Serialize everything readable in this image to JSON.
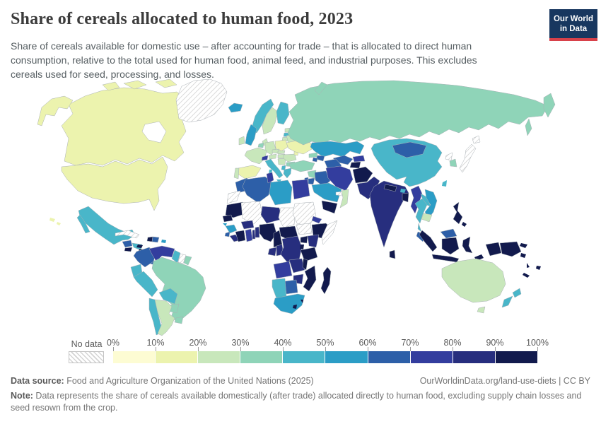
{
  "header": {
    "title": "Share of cereals allocated to human food, 2023",
    "subtitle": "Share of cereals available for domestic use – after accounting for trade – that is allocated to direct human consumption, relative to the total used for human food, animal feed, and industrial purposes. This excludes cereals used for seed, processing, and losses.",
    "logo_line1": "Our World",
    "logo_line2": "in Data",
    "logo_bg": "#18375f",
    "logo_accent": "#d8414a"
  },
  "legend": {
    "no_data_label": "No data",
    "tick_labels": [
      "0%",
      "10%",
      "20%",
      "30%",
      "40%",
      "50%",
      "60%",
      "70%",
      "80%",
      "90%",
      "100%"
    ]
  },
  "footer": {
    "data_source_label": "Data source:",
    "data_source_text": " Food and Agriculture Organization of the United Nations (2025)",
    "link_text": "OurWorldinData.org/land-use-diets | CC BY",
    "note_label": "Note:",
    "note_text": " Data represents the share of cereals available domestically (after trade) allocated directly to human food, excluding supply chain losses and seed resown from the crop."
  },
  "chart_data": {
    "type": "choropleth",
    "title": "Share of cereals allocated to human food, 2023",
    "unit": "%",
    "bins": [
      "0-10%",
      "10-20%",
      "20-30%",
      "30-40%",
      "40-50%",
      "50-60%",
      "60-70%",
      "70-80%",
      "80-90%",
      "90-100%"
    ],
    "bin_colors": [
      "#fdfcd3",
      "#ecf3ae",
      "#c8e7bb",
      "#8fd4b8",
      "#49b6c9",
      "#2b9dc6",
      "#2d5fa8",
      "#333d9e",
      "#272e7e",
      "#121a4d"
    ],
    "no_data_label": "No data",
    "countries": {
      "Canada": 1,
      "United States": 1,
      "Greenland": "no-data",
      "Iceland": 5,
      "Mexico": 4,
      "Guatemala": 6,
      "El Salvador": 9,
      "Honduras": 4,
      "Nicaragua": 9,
      "Costa Rica": 5,
      "Panama": 6,
      "Cuba": "no-data",
      "Jamaica": 9,
      "Haiti": 9,
      "Dominican Republic": 6,
      "Puerto Rico": 5,
      "Colombia": 6,
      "Venezuela": 7,
      "Guyana": 4,
      "Suriname": "no-data",
      "French Guiana": 3,
      "Ecuador": 4,
      "Peru": 4,
      "Brazil": 3,
      "Bolivia": 4,
      "Paraguay": 3,
      "Chile": 4,
      "Argentina": 2,
      "Uruguay": 3,
      "Ireland": 2,
      "United Kingdom": 5,
      "Portugal": 2,
      "Spain": 1,
      "France": 2,
      "Netherlands": 3,
      "Germany": 2,
      "Denmark": 2,
      "Norway": 4,
      "Sweden": 2,
      "Finland": 4,
      "Estonia": 2,
      "Latvia": 4,
      "Lithuania": 2,
      "Poland": 1,
      "Belarus": 2,
      "Ukraine": 1,
      "Moldova": 1,
      "Czechia": 2,
      "Slovakia": 2,
      "Austria": 2,
      "Switzerland": 7,
      "Hungary": 2,
      "Romania": 2,
      "Serbia": 2,
      "Albania": 4,
      "Greece": 4,
      "Bulgaria": 3,
      "Italy": 4,
      "Russia": 3,
      "Kazakhstan": 5,
      "Uzbekistan": 6,
      "Turkmenistan": 6,
      "Kyrgyzstan": 7,
      "Tajikistan": 9,
      "Georgia": 3,
      "Azerbaijan": 6,
      "Armenia": 6,
      "Turkey": 3,
      "Syria": 3,
      "Israel": 6,
      "Jordan": 6,
      "Iraq": 6,
      "Iran": 7,
      "Saudi Arabia": 5,
      "Yemen": 9,
      "Oman": 2,
      "United Arab Emirates": "no-data",
      "Afghanistan": 9,
      "Pakistan": 8,
      "India": 8,
      "Nepal": 9,
      "Bhutan": 4,
      "Bangladesh": 9,
      "Sri Lanka": 9,
      "Myanmar": 7,
      "Thailand": 4,
      "Laos": 4,
      "Vietnam": 5,
      "Cambodia": 2,
      "Malaysia": 6,
      "Indonesia": 9,
      "Philippines": 9,
      "Papua New Guinea": 9,
      "Taiwan": 4,
      "China": 4,
      "Mongolia": 6,
      "North Korea": "no-data",
      "South Korea": 3,
      "Japan": "no-data",
      "Morocco": 6,
      "Western Sahara": "no-data",
      "Algeria": 6,
      "Tunisia": 7,
      "Libya": 5,
      "Egypt": 7,
      "Mauritania": 9,
      "Mali": "no-data",
      "Niger": 8,
      "Chad": "no-data",
      "Sudan": "no-data",
      "South Sudan": "no-data",
      "Eritrea": 7,
      "Djibouti": 6,
      "Ethiopia": 9,
      "Somalia": "no-data",
      "Senegal": 9,
      "Guinea-Bissau": 5,
      "Guinea": 5,
      "Sierra Leone": 6,
      "Liberia": 8,
      "Ivory Coast": 9,
      "Burkina Faso": 8,
      "Ghana": 7,
      "Togo": 8,
      "Benin": 8,
      "Nigeria": 9,
      "Cameroon": 9,
      "Central African Republic": 9,
      "Gabon": 8,
      "Congo": 8,
      "Democratic Republic of Congo": 8,
      "Uganda": 9,
      "Kenya": 8,
      "Rwanda": 9,
      "Tanzania": 9,
      "Angola": 7,
      "Zambia": 8,
      "Malawi": 9,
      "Mozambique": 9,
      "Zimbabwe": 8,
      "Botswana": 6,
      "Namibia": 4,
      "South Africa": 5,
      "Lesotho": 9,
      "Eswatini": 9,
      "Madagascar": 9,
      "Australia": 2,
      "New Zealand": 4,
      "Fiji": 9,
      "Solomon Islands": 9,
      "Vanuatu": 9,
      "New Caledonia": 9,
      "Hawaii": 1
    }
  }
}
